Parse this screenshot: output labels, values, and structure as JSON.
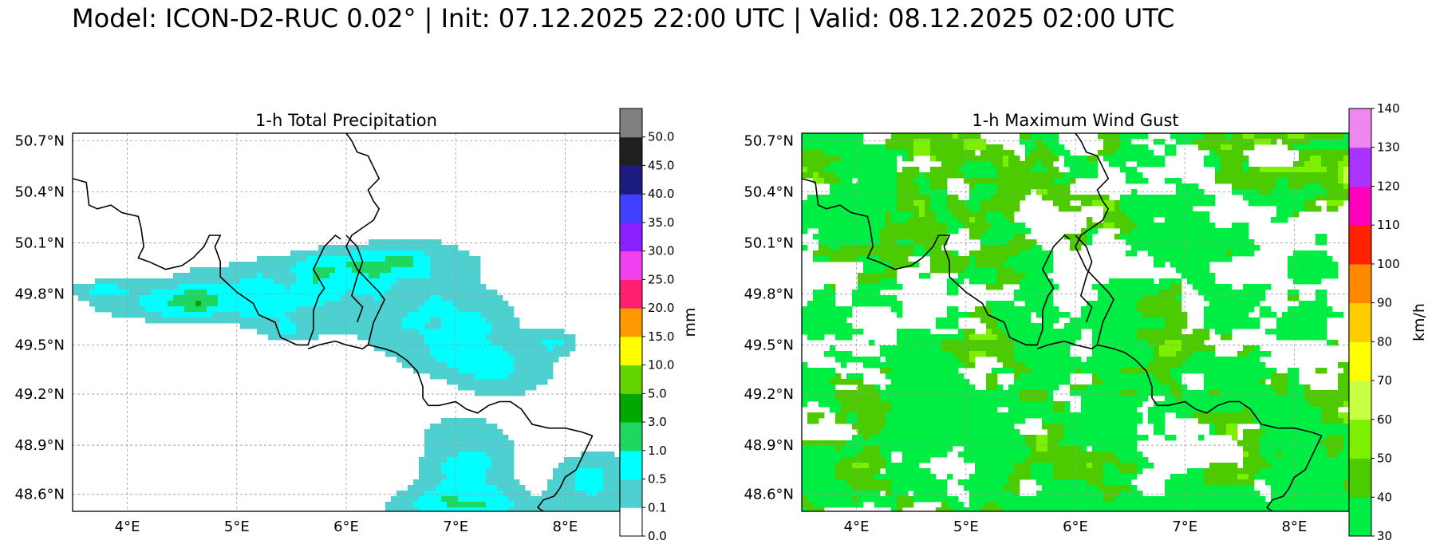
{
  "title": "Model: ICON-D2-RUC 0.02° | Init: 07.12.2025 22:00 UTC | Valid: 08.12.2025 02:00 UTC",
  "chart_data": [
    {
      "type": "heatmap",
      "title": "1-h Total Precipitation",
      "x_ticks": [
        "4°E",
        "5°E",
        "6°E",
        "7°E",
        "8°E"
      ],
      "y_ticks": [
        "50.7°N",
        "50.4°N",
        "50.1°N",
        "49.8°N",
        "49.5°N",
        "49.2°N",
        "48.9°N",
        "48.6°N"
      ],
      "xlim": [
        3.5,
        8.5
      ],
      "ylim": [
        48.5,
        50.73
      ],
      "grid": true,
      "colorbar": {
        "label": "mm",
        "levels": [
          "0.0",
          "0.1",
          "0.5",
          "1.0",
          "3.0",
          "5.0",
          "10.0",
          "15.0",
          "20.0",
          "25.0",
          "30.0",
          "35.0",
          "40.0",
          "45.0",
          "50.0"
        ],
        "colors": [
          "#ffffff",
          "#4fd0d0",
          "#00ffff",
          "#1ed760",
          "#00a800",
          "#64d400",
          "#ffff00",
          "#ff9900",
          "#ff2070",
          "#f040f0",
          "#8a20ff",
          "#4040ff",
          "#1c1c80",
          "#202020",
          "#808080"
        ]
      }
    },
    {
      "type": "heatmap",
      "title": "1-h Maximum Wind Gust",
      "x_ticks": [
        "4°E",
        "5°E",
        "6°E",
        "7°E",
        "8°E"
      ],
      "y_ticks": [
        "50.7°N",
        "50.4°N",
        "50.1°N",
        "49.8°N",
        "49.5°N",
        "49.2°N",
        "48.9°N",
        "48.6°N"
      ],
      "xlim": [
        3.5,
        8.5
      ],
      "ylim": [
        48.5,
        50.73
      ],
      "grid": true,
      "colorbar": {
        "label": "km/h",
        "levels": [
          "30",
          "40",
          "50",
          "60",
          "70",
          "80",
          "90",
          "100",
          "110",
          "120",
          "130",
          "140"
        ],
        "colors": [
          "#00ee44",
          "#4ccc00",
          "#7cf000",
          "#c8ff40",
          "#ffff00",
          "#ffcc00",
          "#ff8800",
          "#ff2200",
          "#ff00bb",
          "#aa33ff",
          "#ee88ee"
        ]
      }
    }
  ]
}
